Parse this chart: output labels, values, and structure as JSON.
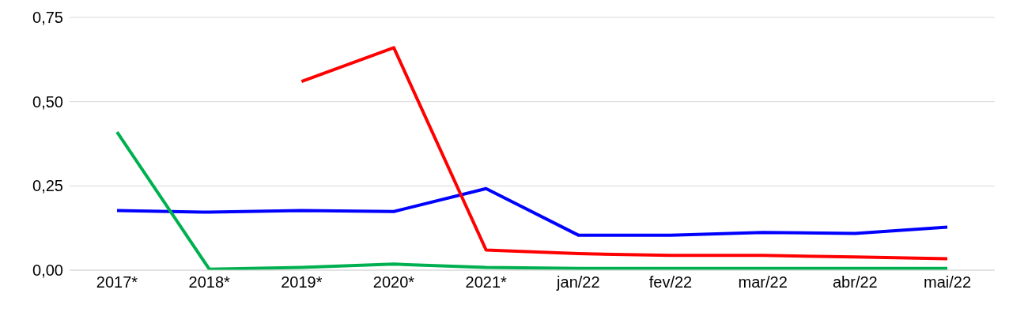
{
  "chart_data": {
    "type": "line",
    "categories": [
      "2017*",
      "2018*",
      "2019*",
      "2020*",
      "2021*",
      "jan/22",
      "fev/22",
      "mar/22",
      "abr/22",
      "mai/22"
    ],
    "series": [
      {
        "color": "#0000ff",
        "values": [
          0.177,
          0.172,
          0.177,
          0.174,
          0.242,
          0.104,
          0.104,
          0.112,
          0.109,
          0.128
        ]
      },
      {
        "color": "#ff0000",
        "values": [
          null,
          null,
          0.56,
          0.66,
          0.06,
          0.049,
          0.044,
          0.044,
          0.039,
          0.034
        ]
      },
      {
        "color": "#00b050",
        "values": [
          0.41,
          0.003,
          0.008,
          0.018,
          0.008,
          0.005,
          0.005,
          0.005,
          0.005,
          0.005
        ]
      }
    ],
    "ylim": [
      0,
      0.75
    ],
    "yticks": [
      {
        "value": 0,
        "label": "0,00"
      },
      {
        "value": 0.25,
        "label": "0,25"
      },
      {
        "value": 0.5,
        "label": "0,50"
      },
      {
        "value": 0.75,
        "label": "0,75"
      }
    ],
    "grid": "y",
    "marker": "none",
    "line_style": "solid",
    "legend": false
  }
}
